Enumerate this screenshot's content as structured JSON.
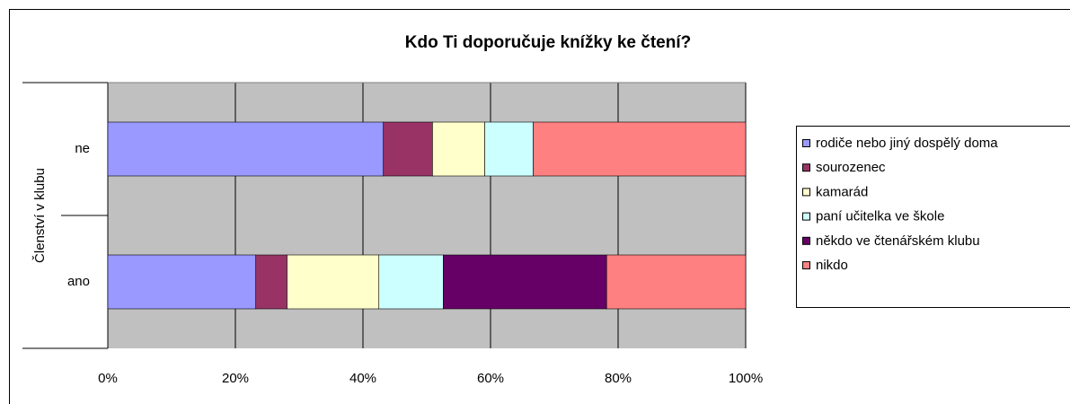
{
  "chart_data": {
    "type": "stacked_barh",
    "title": "Kdo Ti doporučuje knížky ke čtení?",
    "y_label": "Členství v klubu",
    "categories": [
      "ne",
      "ano"
    ],
    "series": [
      {
        "name": "rodiče nebo jiný dospělý doma",
        "color": "#9999ff",
        "values": [
          43.2,
          23.2
        ]
      },
      {
        "name": "sourozenec",
        "color": "#993366",
        "values": [
          7.7,
          4.9
        ]
      },
      {
        "name": "kamarád",
        "color": "#ffffcc",
        "values": [
          8.2,
          14.4
        ]
      },
      {
        "name": "paní učitelka ve škole",
        "color": "#ccffff",
        "values": [
          7.6,
          10.1
        ]
      },
      {
        "name": "někdo ve čtenářském klubu",
        "color": "#660066",
        "values": [
          0,
          25.6
        ]
      },
      {
        "name": "nikdo",
        "color": "#ff8080",
        "values": [
          33.3,
          21.8
        ]
      }
    ],
    "xlim": [
      0,
      100
    ],
    "xticks": [
      {
        "value": 0,
        "label": "0%"
      },
      {
        "value": 20,
        "label": "20%"
      },
      {
        "value": 40,
        "label": "40%"
      },
      {
        "value": 60,
        "label": "60%"
      },
      {
        "value": 80,
        "label": "80%"
      },
      {
        "value": 100,
        "label": "100%"
      }
    ],
    "grid": true,
    "legend": "right",
    "plot_color": "#c0c0c0"
  }
}
